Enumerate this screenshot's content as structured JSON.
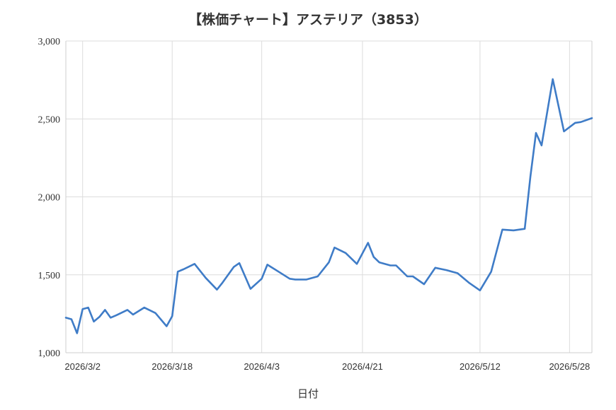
{
  "chart_data": {
    "type": "line",
    "title": "【株価チャート】アステリア（3853）",
    "xlabel": "日付",
    "ylabel": "",
    "ylim": [
      1000,
      3000
    ],
    "yticks": [
      1000,
      1500,
      2000,
      2500,
      3000
    ],
    "ytick_labels": [
      "1,000",
      "1,500",
      "2,000",
      "2,500",
      "3,000"
    ],
    "xlim": [
      "2026-02-27",
      "2026-06-01"
    ],
    "xticks": [
      "2026-03-02",
      "2026-03-18",
      "2026-04-03",
      "2026-04-21",
      "2026-05-12",
      "2026-05-28"
    ],
    "xtick_labels": [
      "2026/3/2",
      "2026/3/18",
      "2026/4/3",
      "2026/4/21",
      "2026/5/12",
      "2026/5/28"
    ],
    "grid": true,
    "line_color": "#3f7cc7",
    "series": [
      {
        "name": "",
        "x": [
          "2026-02-27",
          "2026-02-28",
          "2026-03-01",
          "2026-03-02",
          "2026-03-03",
          "2026-03-04",
          "2026-03-05",
          "2026-03-06",
          "2026-03-07",
          "2026-03-08",
          "2026-03-10",
          "2026-03-11",
          "2026-03-13",
          "2026-03-15",
          "2026-03-17",
          "2026-03-18",
          "2026-03-19",
          "2026-03-20",
          "2026-03-22",
          "2026-03-24",
          "2026-03-26",
          "2026-03-27",
          "2026-03-29",
          "2026-03-30",
          "2026-04-01",
          "2026-04-03",
          "2026-04-04",
          "2026-04-06",
          "2026-04-08",
          "2026-04-09",
          "2026-04-11",
          "2026-04-13",
          "2026-04-15",
          "2026-04-16",
          "2026-04-18",
          "2026-04-20",
          "2026-04-22",
          "2026-04-23",
          "2026-04-24",
          "2026-04-26",
          "2026-04-27",
          "2026-04-29",
          "2026-04-30",
          "2026-05-02",
          "2026-05-04",
          "2026-05-06",
          "2026-05-08",
          "2026-05-10",
          "2026-05-12",
          "2026-05-14",
          "2026-05-16",
          "2026-05-18",
          "2026-05-20",
          "2026-05-21",
          "2026-05-22",
          "2026-05-23",
          "2026-05-25",
          "2026-05-27",
          "2026-05-29",
          "2026-05-30",
          "2026-06-01"
        ],
        "values": [
          1225,
          1215,
          1125,
          1280,
          1290,
          1200,
          1230,
          1275,
          1225,
          1240,
          1275,
          1245,
          1290,
          1255,
          1170,
          1235,
          1520,
          1535,
          1570,
          1480,
          1405,
          1450,
          1550,
          1575,
          1410,
          1475,
          1565,
          1520,
          1475,
          1470,
          1470,
          1490,
          1580,
          1675,
          1640,
          1570,
          1705,
          1615,
          1580,
          1560,
          1560,
          1490,
          1490,
          1440,
          1545,
          1530,
          1510,
          1450,
          1400,
          1520,
          1790,
          1785,
          1795,
          2130,
          2410,
          2330,
          2755,
          2420,
          2475,
          2480,
          2505
        ]
      }
    ]
  }
}
